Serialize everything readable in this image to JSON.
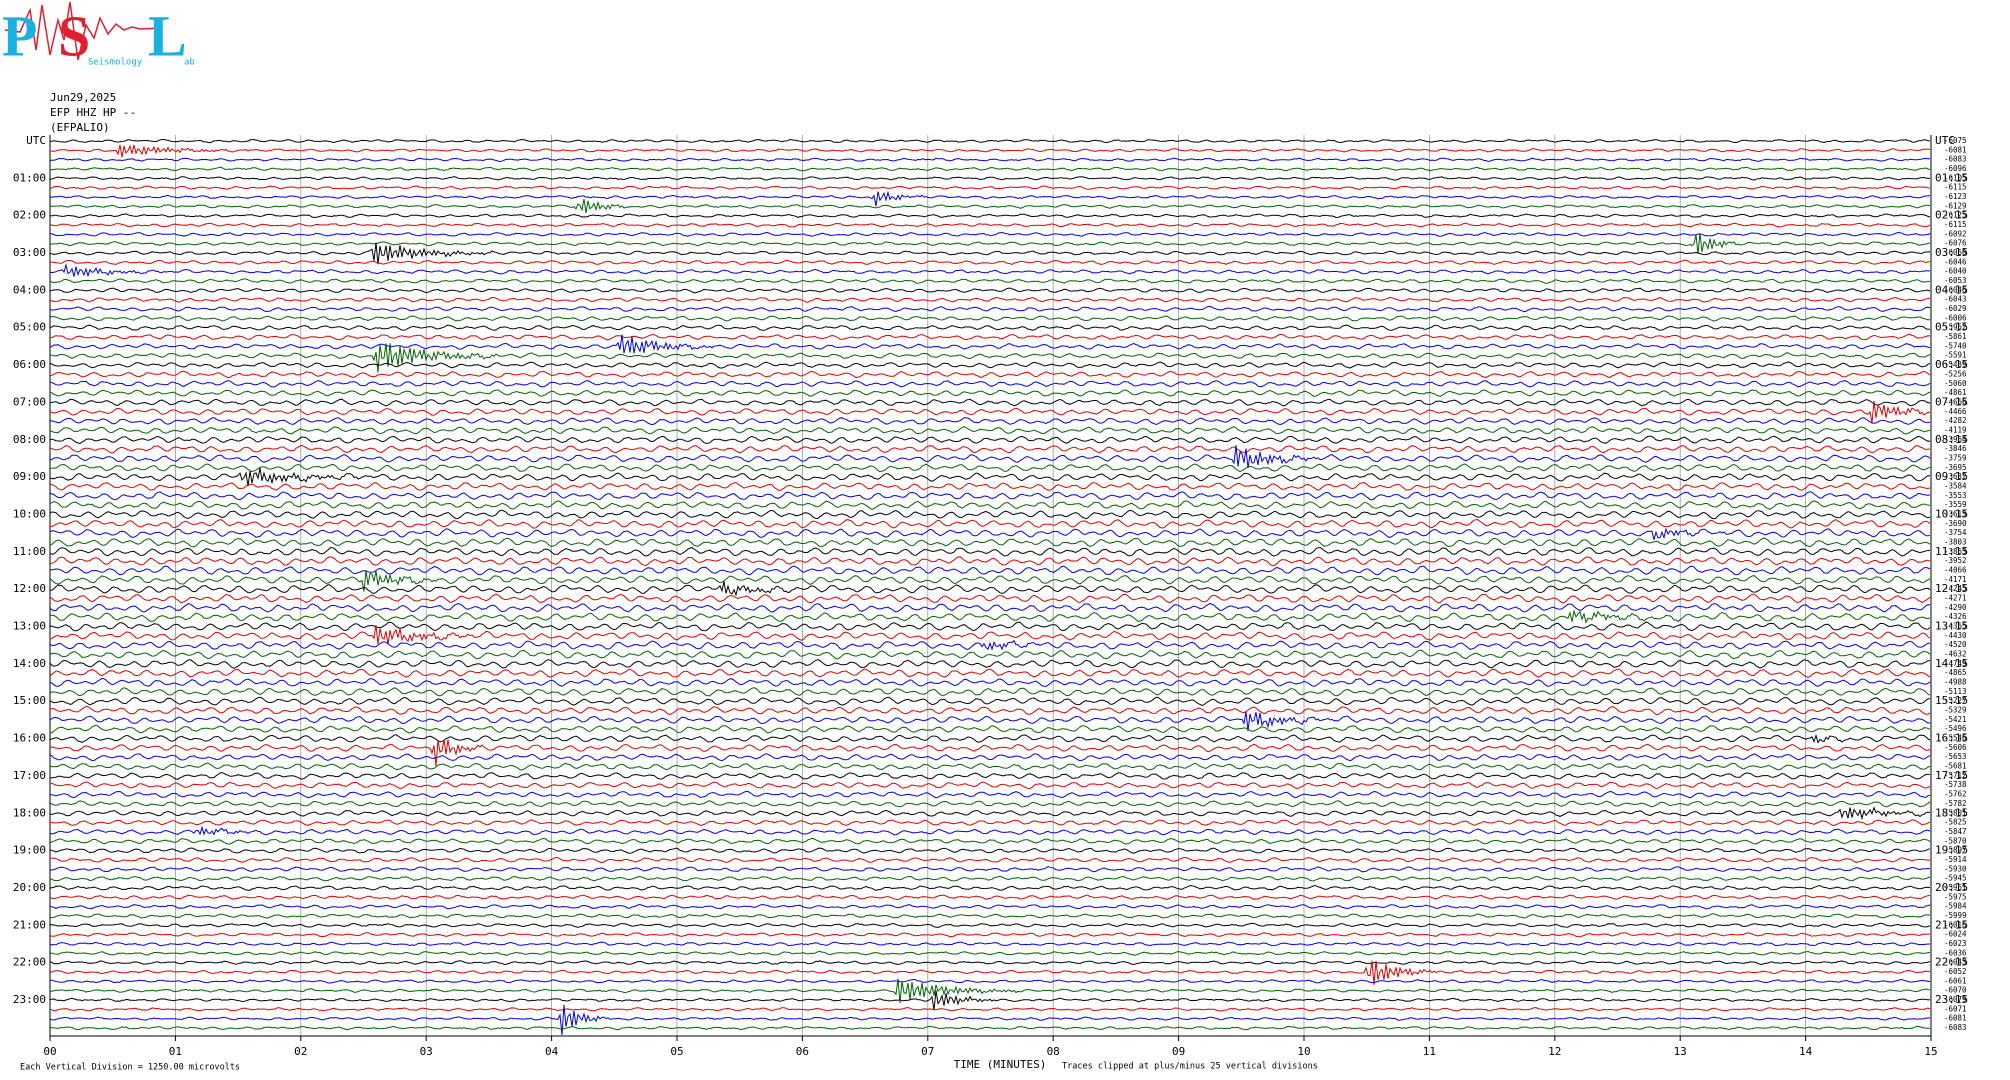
{
  "logo": {
    "letters": [
      "P",
      "S",
      "L"
    ],
    "subtitle": "Seismology",
    "tail": "ab"
  },
  "header": {
    "date": "Jun29,2025",
    "channel": "EFP HHZ HP --",
    "station": "(EFPALIO)"
  },
  "left_labels": [
    "UTC",
    "01:00",
    "02:00",
    "03:00",
    "04:00",
    "05:00",
    "06:00",
    "07:00",
    "08:00",
    "09:00",
    "10:00",
    "11:00",
    "12:00",
    "13:00",
    "14:00",
    "15:00",
    "16:00",
    "17:00",
    "18:00",
    "19:00",
    "20:00",
    "21:00",
    "22:00",
    "23:00"
  ],
  "right_labels": [
    "UTC",
    "01:15",
    "02:15",
    "03:15",
    "04:15",
    "05:15",
    "06:15",
    "07:15",
    "08:15",
    "09:15",
    "10:15",
    "11:15",
    "12:15",
    "13:15",
    "14:15",
    "15:15",
    "16:15",
    "17:15",
    "18:15",
    "19:15",
    "20:15",
    "21:15",
    "22:15",
    "23:15"
  ],
  "offsets": [
    "-6075",
    "-6081",
    "-6083",
    "-6096",
    "-6105",
    "-6115",
    "-6123",
    "-6129",
    "-6125",
    "-6115",
    "-6092",
    "-6076",
    "-6060",
    "-6046",
    "-6040",
    "-6053",
    "-6046",
    "-6043",
    "-6029",
    "-6006",
    "-5952",
    "-5861",
    "-5740",
    "-5591",
    "-5439",
    "-5256",
    "-5060",
    "-4861",
    "-4666",
    "-4466",
    "-4282",
    "-4119",
    "-3964",
    "-3846",
    "-3759",
    "-3695",
    "-3632",
    "-3584",
    "-3553",
    "-3559",
    "-3613",
    "-3690",
    "-3754",
    "-3803",
    "-3863",
    "-3952",
    "-4066",
    "-4171",
    "-4245",
    "-4271",
    "-4290",
    "-4326",
    "-4365",
    "-4430",
    "-4520",
    "-4632",
    "-4749",
    "-4865",
    "-4988",
    "-5113",
    "-5227",
    "-5329",
    "-5421",
    "-5496",
    "-5546",
    "-5606",
    "-5653",
    "-5681",
    "-5712",
    "-5738",
    "-5762",
    "-5782",
    "-5801",
    "-5825",
    "-5847",
    "-5870",
    "-5897",
    "-5914",
    "-5930",
    "-5945",
    "-5961",
    "-5975",
    "-5984",
    "-5999",
    "-6016",
    "-6024",
    "-6023",
    "-6036",
    "-6043",
    "-6052",
    "-6061",
    "-6070",
    "-6079",
    "-6071",
    "-6081",
    "-6083"
  ],
  "x_ticks": [
    "00",
    "01",
    "02",
    "03",
    "04",
    "05",
    "06",
    "07",
    "08",
    "09",
    "10",
    "11",
    "12",
    "13",
    "14",
    "15"
  ],
  "x_label": "TIME (MINUTES)",
  "footer": {
    "scale": "Each Vertical Division = 1250.00 microvolts",
    "clip": "Traces clipped at plus/minus 25 vertical divisions"
  },
  "trace_colors": [
    "#000000",
    "#e00000",
    "#0000e0",
    "#006400"
  ]
}
